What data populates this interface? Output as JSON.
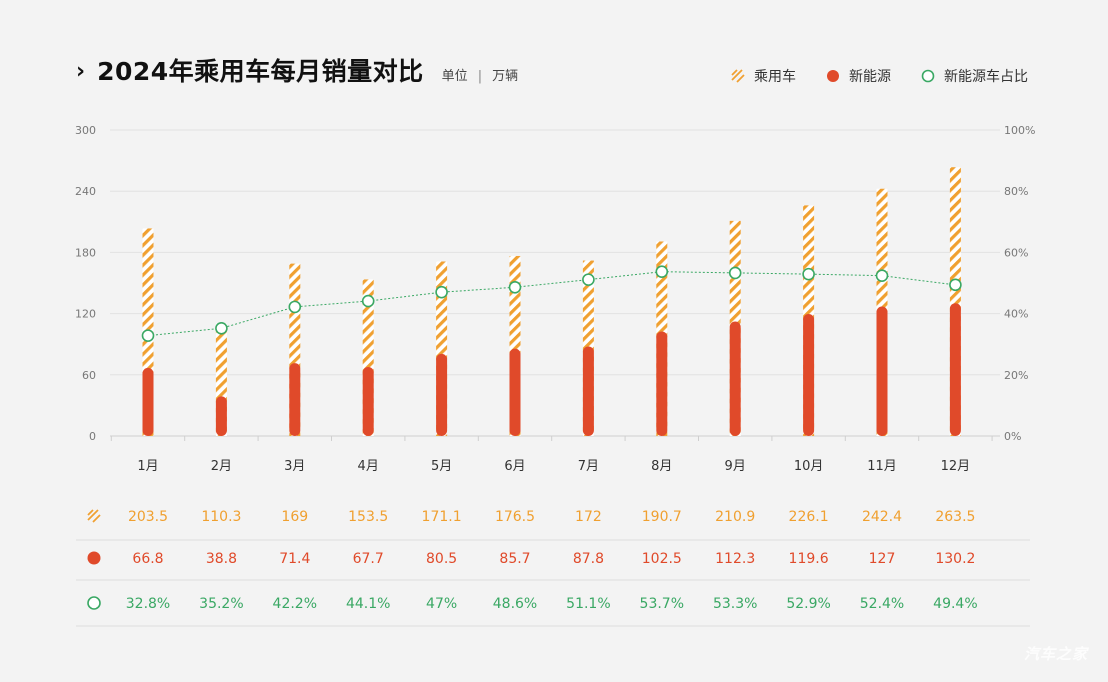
{
  "header": {
    "chevron": "›",
    "title": "2024年乘用车每月销量对比",
    "unit_label": "单位",
    "unit_sep": "|",
    "unit_value": "万辆"
  },
  "colors": {
    "passenger": "#f0a030",
    "nev": "#e04a2a",
    "share": "#3aa864",
    "grid": "#e2e2e2",
    "axis_text": "#777777"
  },
  "watermark": "汽车之家",
  "chart_data": {
    "type": "bar",
    "categories": [
      "1月",
      "2月",
      "3月",
      "4月",
      "5月",
      "6月",
      "7月",
      "8月",
      "9月",
      "10月",
      "11月",
      "12月"
    ],
    "series": [
      {
        "name": "乘用车",
        "axis": "left",
        "style": "hatched-bar",
        "values": [
          203.5,
          110.3,
          169,
          153.5,
          171.1,
          176.5,
          172,
          190.7,
          210.9,
          226.1,
          242.4,
          263.5
        ],
        "labels": [
          "203.5",
          "110.3",
          "169",
          "153.5",
          "171.1",
          "176.5",
          "172",
          "190.7",
          "210.9",
          "226.1",
          "242.4",
          "263.5"
        ]
      },
      {
        "name": "新能源",
        "axis": "left",
        "style": "solid-bar",
        "values": [
          66.8,
          38.8,
          71.4,
          67.7,
          80.5,
          85.7,
          87.8,
          102.5,
          112.3,
          119.6,
          127,
          130.2
        ],
        "labels": [
          "66.8",
          "38.8",
          "71.4",
          "67.7",
          "80.5",
          "85.7",
          "87.8",
          "102.5",
          "112.3",
          "119.6",
          "127",
          "130.2"
        ]
      },
      {
        "name": "新能源车占比",
        "axis": "right",
        "style": "line-circle",
        "values": [
          32.8,
          35.2,
          42.2,
          44.1,
          47,
          48.6,
          51.1,
          53.7,
          53.3,
          52.9,
          52.4,
          49.4
        ],
        "labels": [
          "32.8%",
          "35.2%",
          "42.2%",
          "44.1%",
          "47%",
          "48.6%",
          "51.1%",
          "53.7%",
          "53.3%",
          "52.9%",
          "52.4%",
          "49.4%"
        ]
      }
    ],
    "ylim": [
      0,
      300
    ],
    "yticks": [
      0,
      60,
      120,
      180,
      240,
      300
    ],
    "ytick_labels": [
      "0",
      "60",
      "120",
      "180",
      "240",
      "300"
    ],
    "y2lim": [
      0,
      100
    ],
    "y2ticks": [
      0,
      20,
      40,
      60,
      80,
      100
    ],
    "y2tick_labels": [
      "0%",
      "20%",
      "40%",
      "60%",
      "80%",
      "100%"
    ],
    "grid": true,
    "legend_position": "top-right"
  }
}
